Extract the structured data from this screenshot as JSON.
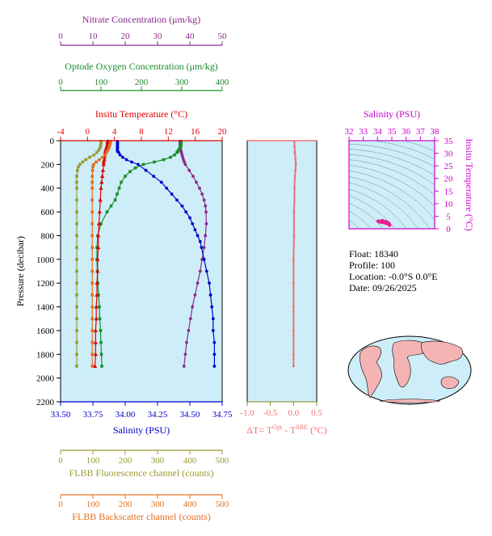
{
  "colors": {
    "nitrate": "#8b2a8b",
    "oxygen": "#1a8c2a",
    "temperature": "#e00000",
    "salinity": "#0000cc",
    "fluorescence": "#9a9a30",
    "backscatter": "#e07020",
    "delta_t": "#f07070",
    "ts_salinity": "#cc00cc",
    "panel_bg": "#cdeef8"
  },
  "axes": {
    "nitrate": {
      "title": "Nitrate Concentration (μm/kg)",
      "min": 0,
      "max": 50,
      "ticks": [
        "0",
        "10",
        "20",
        "30",
        "40",
        "50"
      ]
    },
    "oxygen": {
      "title": "Optode Oxygen Concentration (μm/kg)",
      "min": 0,
      "max": 400,
      "ticks": [
        "0",
        "100",
        "200",
        "300",
        "400"
      ]
    },
    "temperature": {
      "title": "Insitu Temperature (°C)",
      "min": -4,
      "max": 20,
      "ticks": [
        "-4",
        "0",
        "4",
        "8",
        "12",
        "16",
        "20"
      ]
    },
    "salinity": {
      "title": "Salinity (PSU)",
      "min": 33.5,
      "max": 34.75,
      "ticks": [
        "33.50",
        "33.75",
        "34.00",
        "34.25",
        "34.50",
        "34.75"
      ]
    },
    "pressure": {
      "title": "Pressure (decibar)",
      "min": 0,
      "max": 2200,
      "ticks": [
        "0",
        "200",
        "400",
        "600",
        "800",
        "1000",
        "1200",
        "1400",
        "1600",
        "1800",
        "2000",
        "2200"
      ]
    },
    "fluorescence": {
      "title": "FLBB Fluorescence channel (counts)",
      "min": 0,
      "max": 500,
      "ticks": [
        "0",
        "100",
        "200",
        "300",
        "400",
        "500"
      ]
    },
    "backscatter": {
      "title": "FLBB Backscatter channel (counts)",
      "min": 0,
      "max": 500,
      "ticks": [
        "0",
        "100",
        "200",
        "300",
        "400",
        "500"
      ]
    },
    "delta_t": {
      "title_main": "ΔT= T",
      "title_sup1": "Opt",
      "title_mid": " - T",
      "title_sup2": "SBE",
      "title_end": " (°C)",
      "min": -1.0,
      "max": 0.5,
      "ticks": [
        "-1.0",
        "-0.5",
        "0.0",
        "0.5"
      ]
    },
    "ts_salinity": {
      "title": "Salinity (PSU)",
      "min": 32,
      "max": 38,
      "ticks": [
        "32",
        "33",
        "34",
        "35",
        "36",
        "37",
        "38"
      ]
    },
    "ts_temperature": {
      "title": "Insitu Temperature (°C)",
      "min": 0,
      "max": 35,
      "ticks": [
        "0",
        "5",
        "10",
        "15",
        "20",
        "25",
        "30",
        "35"
      ]
    }
  },
  "chart_data": {
    "type": "line",
    "y_axis": "pressure",
    "pressure_reversed": true,
    "series": [
      {
        "key": "nitrate",
        "axis": "nitrate",
        "pressure": [
          5,
          10,
          20,
          30,
          40,
          50,
          60,
          70,
          80,
          90,
          100,
          120,
          140,
          160,
          180,
          200,
          250,
          300,
          350,
          400,
          450,
          500,
          550,
          600,
          700,
          800,
          900,
          1000,
          1100,
          1200,
          1300,
          1400,
          1500,
          1600,
          1700,
          1800,
          1900
        ],
        "values": [
          37,
          37,
          37,
          37,
          37,
          37,
          37,
          37.1,
          37.2,
          37.3,
          37.4,
          37.6,
          37.8,
          38.0,
          38.3,
          38.6,
          39.8,
          41.0,
          42.0,
          43.0,
          43.8,
          44.4,
          44.8,
          45.0,
          45.1,
          44.8,
          44.4,
          43.8,
          43.2,
          42.4,
          41.6,
          40.8,
          40.2,
          39.6,
          39.0,
          38.6,
          38.2
        ]
      },
      {
        "key": "oxygen",
        "axis": "oxygen",
        "pressure": [
          5,
          10,
          20,
          30,
          40,
          50,
          60,
          70,
          80,
          90,
          100,
          120,
          140,
          160,
          180,
          200,
          230,
          260,
          300,
          350,
          400,
          450,
          500,
          550,
          600,
          700,
          800,
          900,
          1000,
          1100,
          1200,
          1300,
          1400,
          1500,
          1600,
          1700,
          1800,
          1900
        ],
        "values": [
          298,
          298,
          298,
          298,
          298,
          297,
          296,
          294,
          292,
          290,
          288,
          282,
          272,
          255,
          232,
          205,
          185,
          172,
          160,
          150,
          145,
          140,
          135,
          125,
          115,
          100,
          92,
          90,
          90,
          91,
          92,
          94,
          96,
          97,
          99,
          100,
          101,
          102
        ]
      },
      {
        "key": "temperature",
        "axis": "temperature",
        "pressure": [
          5,
          10,
          20,
          30,
          40,
          50,
          60,
          70,
          80,
          90,
          100,
          120,
          140,
          160,
          180,
          200,
          250,
          300,
          350,
          400,
          500,
          600,
          700,
          800,
          900,
          1000,
          1100,
          1200,
          1300,
          1400,
          1500,
          1600,
          1700,
          1800,
          1900
        ],
        "values": [
          3.0,
          3.0,
          3.0,
          3.0,
          2.9,
          2.9,
          2.8,
          2.8,
          2.7,
          2.7,
          2.6,
          2.6,
          2.5,
          2.5,
          2.4,
          2.4,
          2.3,
          2.2,
          2.1,
          2.0,
          1.9,
          1.8,
          1.7,
          1.6,
          1.6,
          1.5,
          1.5,
          1.4,
          1.4,
          1.3,
          1.3,
          1.2,
          1.2,
          1.2,
          1.1
        ]
      },
      {
        "key": "salinity",
        "axis": "salinity",
        "pressure": [
          5,
          10,
          20,
          30,
          40,
          50,
          60,
          70,
          80,
          90,
          100,
          120,
          140,
          160,
          180,
          200,
          250,
          300,
          350,
          400,
          450,
          500,
          550,
          600,
          650,
          700,
          750,
          800,
          850,
          900,
          1000,
          1100,
          1200,
          1300,
          1400,
          1500,
          1600,
          1700,
          1800,
          1900
        ],
        "values": [
          33.94,
          33.94,
          33.94,
          33.94,
          33.94,
          33.94,
          33.94,
          33.94,
          33.94,
          33.94,
          33.95,
          33.96,
          33.98,
          34.01,
          34.05,
          34.1,
          34.16,
          34.22,
          34.28,
          34.32,
          34.36,
          34.4,
          34.44,
          34.47,
          34.5,
          34.52,
          34.54,
          34.56,
          34.58,
          34.59,
          34.61,
          34.63,
          34.65,
          34.66,
          34.67,
          34.68,
          34.68,
          34.69,
          34.69,
          34.69
        ]
      },
      {
        "key": "fluorescence",
        "axis": "fluorescence",
        "pressure": [
          5,
          20,
          40,
          60,
          80,
          100,
          120,
          140,
          160,
          180,
          200,
          220,
          250,
          300,
          350,
          400,
          500,
          600,
          700,
          800,
          900,
          1000,
          1100,
          1200,
          1300,
          1400,
          1500,
          1600,
          1700,
          1800,
          1900
        ],
        "values": [
          125,
          125,
          124,
          122,
          118,
          112,
          103,
          90,
          78,
          68,
          60,
          55,
          52,
          50,
          50,
          50,
          50,
          50,
          50,
          50,
          50,
          50,
          50,
          50,
          50,
          50,
          50,
          50,
          50,
          50,
          50
        ]
      },
      {
        "key": "backscatter",
        "axis": "backscatter",
        "pressure": [
          5,
          20,
          40,
          60,
          80,
          100,
          120,
          140,
          160,
          180,
          200,
          220,
          250,
          300,
          350,
          400,
          500,
          600,
          700,
          800,
          900,
          1000,
          1100,
          1200,
          1300,
          1400,
          1500,
          1600,
          1700,
          1800,
          1900
        ],
        "values": [
          155,
          154,
          152,
          150,
          146,
          142,
          138,
          130,
          120,
          110,
          102,
          100,
          99,
          98,
          98,
          98,
          98,
          98,
          98,
          98,
          98,
          98,
          98,
          98,
          98,
          98,
          98,
          98,
          98,
          98,
          98
        ]
      },
      {
        "key": "delta_t",
        "axis": "delta_t",
        "pressure": [
          5,
          50,
          100,
          150,
          200,
          250,
          300,
          400,
          500,
          600,
          800,
          1000,
          1200,
          1400,
          1600,
          1800,
          1900
        ],
        "values": [
          0.02,
          0.02,
          0.03,
          0.04,
          0.05,
          0.04,
          0.03,
          0.02,
          0.02,
          0.01,
          0.01,
          0.0,
          0.0,
          0.0,
          0.0,
          0.0,
          0.0
        ]
      }
    ],
    "ts_diagram": {
      "type": "scatter",
      "x_axis": "ts_salinity",
      "y_axis": "ts_temperature",
      "salinity": [
        34.05,
        34.12,
        34.2,
        34.28,
        34.35,
        34.42,
        34.5,
        34.56,
        34.62,
        34.68,
        34.72,
        34.75,
        34.78,
        34.8,
        34.82,
        34.84
      ],
      "temperature": [
        3.0,
        2.8,
        2.9,
        2.6,
        3.2,
        2.7,
        2.4,
        2.8,
        2.2,
        2.5,
        2.1,
        2.3,
        1.9,
        2.0,
        1.7,
        1.5
      ]
    }
  },
  "info": {
    "float": "Float:  18340",
    "profile": "Profile:  100",
    "location": "Location:  -0.0°S   0.0°E",
    "date": "Date:  09/26/2025"
  }
}
